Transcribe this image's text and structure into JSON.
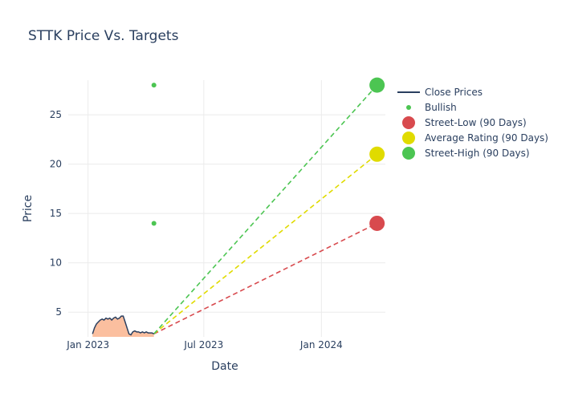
{
  "chart_data": {
    "type": "line",
    "title": "STTK Price Vs. Targets",
    "xlabel": "Date",
    "ylabel": "Price",
    "xlim": [
      "2022-12-01",
      "2024-04-10"
    ],
    "ylim": [
      2.5,
      28.5
    ],
    "x_ticks": [
      {
        "date": "2023-01-01",
        "label": "Jan 2023"
      },
      {
        "date": "2023-07-01",
        "label": "Jul 2023"
      },
      {
        "date": "2024-01-01",
        "label": "Jan 2024"
      }
    ],
    "y_ticks": [
      5,
      10,
      15,
      20,
      25
    ],
    "grid": true,
    "legend_position": "top-right",
    "colors": {
      "close": "#2a3f5f",
      "area_fill": "#fbbf9f",
      "bullish": "#4cc552",
      "street_low": "#d84a4e",
      "average": "#e0db00",
      "street_high": "#4cc552",
      "grid": "#ebebeb"
    },
    "series": [
      {
        "name": "Close Prices",
        "kind": "line",
        "points": [
          [
            "2023-01-08",
            2.8
          ],
          [
            "2023-01-11",
            3.4
          ],
          [
            "2023-01-14",
            3.8
          ],
          [
            "2023-01-17",
            4.0
          ],
          [
            "2023-01-20",
            4.2
          ],
          [
            "2023-01-23",
            4.3
          ],
          [
            "2023-01-26",
            4.2
          ],
          [
            "2023-01-29",
            4.4
          ],
          [
            "2023-02-01",
            4.3
          ],
          [
            "2023-02-04",
            4.4
          ],
          [
            "2023-02-07",
            4.2
          ],
          [
            "2023-02-10",
            4.4
          ],
          [
            "2023-02-13",
            4.5
          ],
          [
            "2023-02-16",
            4.3
          ],
          [
            "2023-02-19",
            4.4
          ],
          [
            "2023-02-22",
            4.6
          ],
          [
            "2023-02-25",
            4.6
          ],
          [
            "2023-02-28",
            4.0
          ],
          [
            "2023-03-03",
            3.4
          ],
          [
            "2023-03-06",
            2.8
          ],
          [
            "2023-03-09",
            2.7
          ],
          [
            "2023-03-12",
            3.0
          ],
          [
            "2023-03-15",
            3.1
          ],
          [
            "2023-03-18",
            3.0
          ],
          [
            "2023-03-21",
            3.0
          ],
          [
            "2023-03-24",
            2.9
          ],
          [
            "2023-03-27",
            3.0
          ],
          [
            "2023-03-30",
            2.9
          ],
          [
            "2023-04-02",
            3.0
          ],
          [
            "2023-04-05",
            2.9
          ],
          [
            "2023-04-08",
            2.9
          ],
          [
            "2023-04-11",
            2.9
          ],
          [
            "2023-04-14",
            2.8
          ]
        ]
      },
      {
        "name": "Bullish",
        "kind": "markers",
        "points": [
          [
            "2023-04-14",
            28.0
          ],
          [
            "2023-04-14",
            14.0
          ]
        ]
      },
      {
        "name": "Street-Low (90 Days)",
        "kind": "target",
        "start": [
          "2023-04-14",
          2.8
        ],
        "end": [
          "2024-03-28",
          14.0
        ]
      },
      {
        "name": "Average Rating (90 Days)",
        "kind": "target",
        "start": [
          "2023-04-14",
          2.8
        ],
        "end": [
          "2024-03-28",
          21.0
        ]
      },
      {
        "name": "Street-High (90 Days)",
        "kind": "target",
        "start": [
          "2023-04-14",
          2.8
        ],
        "end": [
          "2024-03-28",
          28.0
        ]
      }
    ]
  }
}
